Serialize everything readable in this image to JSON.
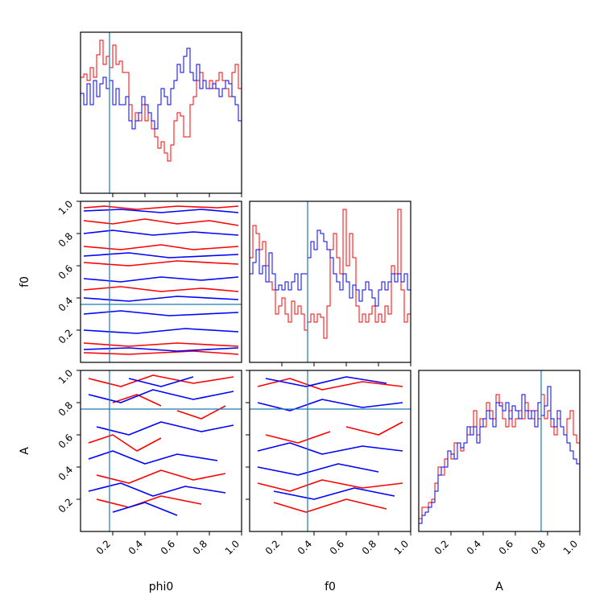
{
  "chart_data": {
    "type": "corner",
    "parameters": [
      "phi0",
      "f0",
      "A"
    ],
    "range": [
      0.0,
      1.0
    ],
    "tick_labels": [
      "0.2",
      "0.4",
      "0.6",
      "0.8",
      "1.0"
    ],
    "truths": {
      "phi0": 0.18,
      "f0": 0.36,
      "A": 0.76
    },
    "colors": {
      "red": "#ff0000",
      "blue": "#0000ff",
      "truth": "#1f77b4"
    },
    "histograms": {
      "phi0": {
        "red": [
          0.72,
          0.74,
          0.7,
          0.78,
          0.72,
          0.86,
          0.95,
          0.8,
          0.85,
          0.78,
          0.92,
          0.8,
          0.82,
          0.75,
          0.75,
          0.55,
          0.4,
          0.5,
          0.45,
          0.55,
          0.45,
          0.5,
          0.4,
          0.35,
          0.28,
          0.32,
          0.25,
          0.2,
          0.3,
          0.45,
          0.5,
          0.48,
          0.35,
          0.35,
          0.55,
          0.6,
          0.7,
          0.75,
          0.7,
          0.65,
          0.7,
          0.65,
          0.7,
          0.75,
          0.7,
          0.65,
          0.6,
          0.75,
          0.8,
          0.65
        ],
        "blue": [
          0.62,
          0.55,
          0.68,
          0.55,
          0.7,
          0.6,
          0.68,
          0.72,
          0.65,
          0.7,
          0.55,
          0.65,
          0.55,
          0.55,
          0.6,
          0.45,
          0.4,
          0.45,
          0.5,
          0.6,
          0.55,
          0.5,
          0.45,
          0.4,
          0.55,
          0.65,
          0.6,
          0.55,
          0.65,
          0.7,
          0.8,
          0.75,
          0.85,
          0.9,
          0.75,
          0.7,
          0.8,
          0.65,
          0.7,
          0.65,
          0.65,
          0.68,
          0.65,
          0.6,
          0.65,
          0.7,
          0.68,
          0.6,
          0.55,
          0.45
        ]
      },
      "f0": {
        "red": [
          0.65,
          0.85,
          0.8,
          0.7,
          0.75,
          0.6,
          0.5,
          0.45,
          0.3,
          0.35,
          0.4,
          0.3,
          0.25,
          0.38,
          0.3,
          0.35,
          0.3,
          0.2,
          0.25,
          0.3,
          0.25,
          0.3,
          0.28,
          0.15,
          0.35,
          0.7,
          0.8,
          0.65,
          0.55,
          0.95,
          0.6,
          0.8,
          0.65,
          0.35,
          0.25,
          0.3,
          0.25,
          0.3,
          0.35,
          0.25,
          0.3,
          0.25,
          0.35,
          0.3,
          0.6,
          0.55,
          0.95,
          0.45,
          0.25,
          0.3
        ],
        "blue": [
          0.55,
          0.62,
          0.7,
          0.55,
          0.6,
          0.5,
          0.68,
          0.55,
          0.45,
          0.48,
          0.45,
          0.5,
          0.45,
          0.5,
          0.55,
          0.45,
          0.55,
          0.55,
          0.65,
          0.75,
          0.7,
          0.82,
          0.8,
          0.75,
          0.7,
          0.65,
          0.55,
          0.5,
          0.45,
          0.55,
          0.5,
          0.4,
          0.48,
          0.45,
          0.38,
          0.45,
          0.5,
          0.45,
          0.4,
          0.35,
          0.45,
          0.5,
          0.45,
          0.5,
          0.55,
          0.5,
          0.55,
          0.5,
          0.55,
          0.45
        ]
      },
      "A": {
        "red": [
          0.08,
          0.15,
          0.15,
          0.18,
          0.2,
          0.3,
          0.4,
          0.35,
          0.45,
          0.5,
          0.45,
          0.55,
          0.55,
          0.5,
          0.55,
          0.6,
          0.65,
          0.75,
          0.6,
          0.7,
          0.65,
          0.8,
          0.75,
          0.7,
          0.85,
          0.8,
          0.7,
          0.65,
          0.75,
          0.65,
          0.7,
          0.75,
          0.7,
          0.8,
          0.75,
          0.7,
          0.75,
          0.7,
          0.85,
          0.7,
          0.75,
          0.65,
          0.6,
          0.7,
          0.65,
          0.6,
          0.7,
          0.75,
          0.6,
          0.55
        ],
        "blue": [
          0.05,
          0.1,
          0.12,
          0.15,
          0.18,
          0.25,
          0.35,
          0.4,
          0.4,
          0.5,
          0.48,
          0.45,
          0.55,
          0.52,
          0.55,
          0.65,
          0.6,
          0.65,
          0.55,
          0.65,
          0.7,
          0.75,
          0.7,
          0.65,
          0.8,
          0.78,
          0.75,
          0.8,
          0.7,
          0.78,
          0.75,
          0.7,
          0.85,
          0.75,
          0.7,
          0.75,
          0.65,
          0.8,
          0.72,
          0.78,
          0.9,
          0.7,
          0.65,
          0.75,
          0.65,
          0.6,
          0.55,
          0.5,
          0.45,
          0.42
        ]
      }
    },
    "contours": {
      "f0_vs_phi0": {
        "red": [
          [
            [
              0.02,
              0.96
            ],
            [
              0.15,
              0.97
            ],
            [
              0.35,
              0.95
            ],
            [
              0.6,
              0.97
            ],
            [
              0.85,
              0.96
            ],
            [
              0.98,
              0.97
            ]
          ],
          [
            [
              0.02,
              0.88
            ],
            [
              0.2,
              0.86
            ],
            [
              0.4,
              0.89
            ],
            [
              0.6,
              0.86
            ],
            [
              0.8,
              0.88
            ],
            [
              0.98,
              0.85
            ]
          ],
          [
            [
              0.02,
              0.72
            ],
            [
              0.25,
              0.7
            ],
            [
              0.5,
              0.73
            ],
            [
              0.7,
              0.7
            ],
            [
              0.98,
              0.72
            ]
          ],
          [
            [
              0.02,
              0.62
            ],
            [
              0.3,
              0.6
            ],
            [
              0.6,
              0.63
            ],
            [
              0.98,
              0.61
            ]
          ],
          [
            [
              0.02,
              0.45
            ],
            [
              0.25,
              0.47
            ],
            [
              0.5,
              0.44
            ],
            [
              0.75,
              0.46
            ],
            [
              0.98,
              0.44
            ]
          ],
          [
            [
              0.02,
              0.12
            ],
            [
              0.3,
              0.1
            ],
            [
              0.6,
              0.12
            ],
            [
              0.98,
              0.1
            ]
          ],
          [
            [
              0.02,
              0.06
            ],
            [
              0.3,
              0.05
            ],
            [
              0.7,
              0.07
            ],
            [
              0.98,
              0.05
            ]
          ]
        ],
        "blue": [
          [
            [
              0.02,
              0.94
            ],
            [
              0.25,
              0.95
            ],
            [
              0.5,
              0.93
            ],
            [
              0.75,
              0.95
            ],
            [
              0.98,
              0.93
            ]
          ],
          [
            [
              0.02,
              0.8
            ],
            [
              0.2,
              0.82
            ],
            [
              0.45,
              0.79
            ],
            [
              0.7,
              0.81
            ],
            [
              0.98,
              0.79
            ]
          ],
          [
            [
              0.02,
              0.66
            ],
            [
              0.3,
              0.68
            ],
            [
              0.55,
              0.65
            ],
            [
              0.98,
              0.67
            ]
          ],
          [
            [
              0.02,
              0.52
            ],
            [
              0.25,
              0.5
            ],
            [
              0.5,
              0.53
            ],
            [
              0.75,
              0.51
            ],
            [
              0.98,
              0.53
            ]
          ],
          [
            [
              0.02,
              0.4
            ],
            [
              0.3,
              0.38
            ],
            [
              0.6,
              0.41
            ],
            [
              0.98,
              0.39
            ]
          ],
          [
            [
              0.02,
              0.3
            ],
            [
              0.25,
              0.32
            ],
            [
              0.55,
              0.29
            ],
            [
              0.98,
              0.31
            ]
          ],
          [
            [
              0.02,
              0.2
            ],
            [
              0.35,
              0.18
            ],
            [
              0.65,
              0.21
            ],
            [
              0.98,
              0.19
            ]
          ],
          [
            [
              0.02,
              0.08
            ],
            [
              0.3,
              0.09
            ],
            [
              0.6,
              0.07
            ],
            [
              0.98,
              0.09
            ]
          ]
        ]
      },
      "A_vs_phi0": {
        "red": [
          [
            [
              0.05,
              0.95
            ],
            [
              0.25,
              0.9
            ],
            [
              0.45,
              0.97
            ],
            [
              0.7,
              0.92
            ],
            [
              0.95,
              0.96
            ]
          ],
          [
            [
              0.1,
              0.35
            ],
            [
              0.3,
              0.3
            ],
            [
              0.5,
              0.38
            ],
            [
              0.7,
              0.32
            ],
            [
              0.9,
              0.36
            ]
          ],
          [
            [
              0.05,
              0.55
            ],
            [
              0.2,
              0.6
            ],
            [
              0.35,
              0.5
            ],
            [
              0.5,
              0.58
            ]
          ],
          [
            [
              0.6,
              0.75
            ],
            [
              0.75,
              0.7
            ],
            [
              0.9,
              0.78
            ]
          ],
          [
            [
              0.1,
              0.2
            ],
            [
              0.3,
              0.15
            ],
            [
              0.5,
              0.22
            ],
            [
              0.75,
              0.17
            ]
          ],
          [
            [
              0.2,
              0.8
            ],
            [
              0.35,
              0.85
            ],
            [
              0.5,
              0.78
            ]
          ]
        ],
        "blue": [
          [
            [
              0.05,
              0.85
            ],
            [
              0.25,
              0.8
            ],
            [
              0.45,
              0.88
            ],
            [
              0.7,
              0.82
            ],
            [
              0.95,
              0.87
            ]
          ],
          [
            [
              0.05,
              0.45
            ],
            [
              0.2,
              0.5
            ],
            [
              0.4,
              0.42
            ],
            [
              0.6,
              0.48
            ],
            [
              0.85,
              0.44
            ]
          ],
          [
            [
              0.1,
              0.65
            ],
            [
              0.3,
              0.6
            ],
            [
              0.5,
              0.68
            ],
            [
              0.75,
              0.62
            ],
            [
              0.95,
              0.66
            ]
          ],
          [
            [
              0.05,
              0.25
            ],
            [
              0.25,
              0.3
            ],
            [
              0.45,
              0.22
            ],
            [
              0.65,
              0.28
            ],
            [
              0.9,
              0.24
            ]
          ],
          [
            [
              0.3,
              0.95
            ],
            [
              0.5,
              0.9
            ],
            [
              0.7,
              0.96
            ]
          ],
          [
            [
              0.2,
              0.12
            ],
            [
              0.4,
              0.18
            ],
            [
              0.6,
              0.1
            ]
          ]
        ]
      },
      "A_vs_f0": {
        "red": [
          [
            [
              0.05,
              0.9
            ],
            [
              0.25,
              0.95
            ],
            [
              0.45,
              0.88
            ],
            [
              0.7,
              0.93
            ],
            [
              0.95,
              0.9
            ]
          ],
          [
            [
              0.05,
              0.3
            ],
            [
              0.25,
              0.25
            ],
            [
              0.45,
              0.32
            ],
            [
              0.7,
              0.27
            ],
            [
              0.95,
              0.3
            ]
          ],
          [
            [
              0.1,
              0.6
            ],
            [
              0.3,
              0.55
            ],
            [
              0.5,
              0.62
            ]
          ],
          [
            [
              0.6,
              0.65
            ],
            [
              0.8,
              0.6
            ],
            [
              0.95,
              0.68
            ]
          ],
          [
            [
              0.15,
              0.18
            ],
            [
              0.35,
              0.12
            ],
            [
              0.6,
              0.2
            ],
            [
              0.85,
              0.14
            ]
          ]
        ],
        "blue": [
          [
            [
              0.05,
              0.8
            ],
            [
              0.25,
              0.75
            ],
            [
              0.45,
              0.82
            ],
            [
              0.7,
              0.77
            ],
            [
              0.95,
              0.8
            ]
          ],
          [
            [
              0.05,
              0.5
            ],
            [
              0.25,
              0.55
            ],
            [
              0.45,
              0.48
            ],
            [
              0.7,
              0.53
            ],
            [
              0.95,
              0.5
            ]
          ],
          [
            [
              0.05,
              0.4
            ],
            [
              0.3,
              0.35
            ],
            [
              0.55,
              0.42
            ],
            [
              0.8,
              0.37
            ]
          ],
          [
            [
              0.1,
              0.95
            ],
            [
              0.35,
              0.9
            ],
            [
              0.6,
              0.96
            ],
            [
              0.85,
              0.92
            ]
          ],
          [
            [
              0.15,
              0.25
            ],
            [
              0.4,
              0.2
            ],
            [
              0.65,
              0.27
            ],
            [
              0.9,
              0.22
            ]
          ]
        ]
      }
    }
  }
}
